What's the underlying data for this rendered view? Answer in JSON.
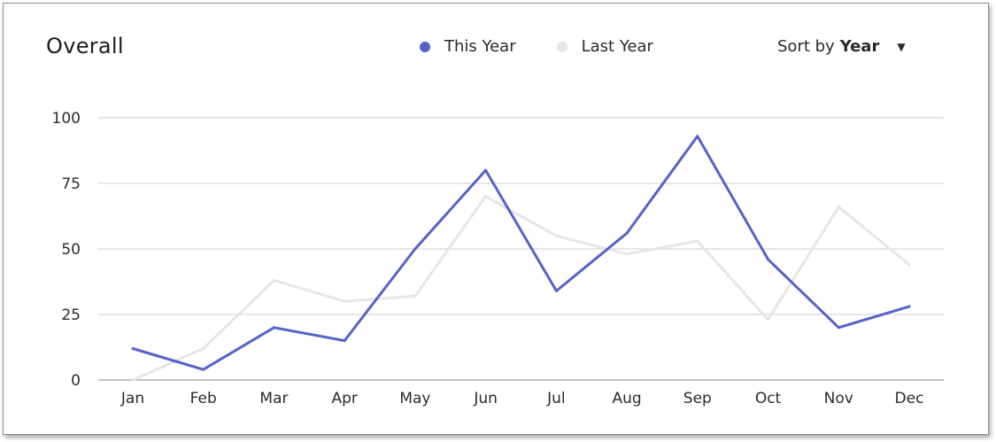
{
  "header": {
    "title": "Overall",
    "sort_prefix": "Sort by",
    "sort_value": "Year",
    "sort_caret": "▼"
  },
  "colors": {
    "this_year": "#5563c8",
    "last_year": "#e6e6e6",
    "grid": "#cfcfcf",
    "axis": "#8a8a8a"
  },
  "chart_data": {
    "type": "line",
    "title": "Overall",
    "xlabel": "",
    "ylabel": "",
    "categories": [
      "Jan",
      "Feb",
      "Mar",
      "Apr",
      "May",
      "Jun",
      "Jul",
      "Aug",
      "Sep",
      "Oct",
      "Nov",
      "Dec"
    ],
    "ylim": [
      0,
      100
    ],
    "yticks": [
      0,
      25,
      50,
      75,
      100
    ],
    "grid": true,
    "legend_position": "top",
    "series": [
      {
        "name": "This Year",
        "color": "#5563c8",
        "values": [
          12,
          4,
          20,
          15,
          50,
          80,
          34,
          56,
          93,
          46,
          20,
          28
        ]
      },
      {
        "name": "Last Year",
        "color": "#e6e6e6",
        "values": [
          0,
          12,
          38,
          30,
          32,
          70,
          55,
          48,
          53,
          23,
          66,
          44
        ]
      }
    ]
  }
}
